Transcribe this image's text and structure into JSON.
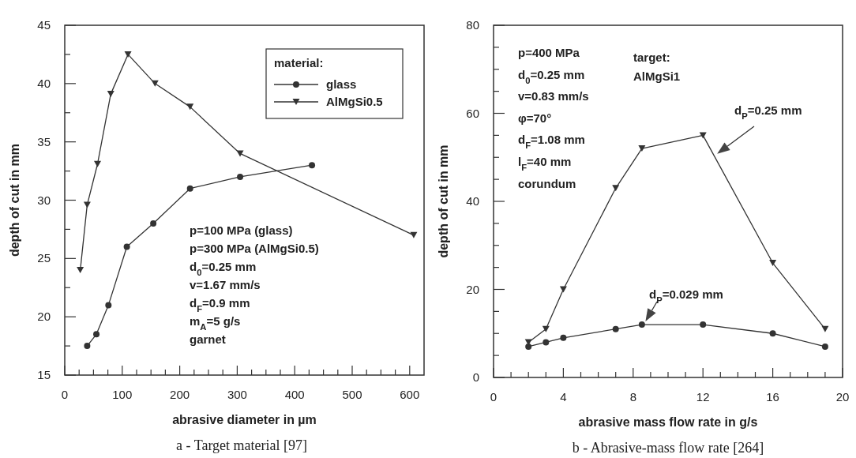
{
  "chart_data": [
    {
      "type": "line",
      "title": "a - Target material [97]",
      "xlabel": "abrasive diameter in µm",
      "ylabel": "depth of cut in mm",
      "legend_title": "material:",
      "legend": "top right",
      "xlim": [
        0,
        625
      ],
      "ylim": [
        15,
        45
      ],
      "xticks": [
        0,
        {
          "value": 25,
          "label": null
        },
        {
          "value": 50,
          "label": null
        },
        {
          "value": 75,
          "label": null
        },
        100,
        {
          "value": 125,
          "label": null
        },
        {
          "value": 150,
          "label": null
        },
        {
          "value": 175,
          "label": null
        },
        200,
        {
          "value": 225,
          "label": null
        },
        {
          "value": 250,
          "label": null
        },
        {
          "value": 275,
          "label": null
        },
        300,
        {
          "value": 325,
          "label": null
        },
        {
          "value": 350,
          "label": null
        },
        {
          "value": 375,
          "label": null
        },
        400,
        {
          "value": 425,
          "label": null
        },
        {
          "value": 450,
          "label": null
        },
        {
          "value": 475,
          "label": null
        },
        500,
        {
          "value": 525,
          "label": null
        },
        {
          "value": 550,
          "label": null
        },
        {
          "value": 575,
          "label": null
        },
        600
      ],
      "yticks": [
        15,
        {
          "value": 17.5,
          "label": null
        },
        20,
        {
          "value": 22.5,
          "label": null
        },
        25,
        {
          "value": 27.5,
          "label": null
        },
        30,
        {
          "value": 32.5,
          "label": null
        },
        35,
        {
          "value": 37.5,
          "label": null
        },
        40,
        {
          "value": 42.5,
          "label": null
        },
        45
      ],
      "series": [
        {
          "name": "glass",
          "color": "#333333",
          "marker": "circle",
          "x": [
            39,
            55,
            76,
            108,
            154,
            218,
            305,
            430
          ],
          "values": [
            17.5,
            18.5,
            21,
            26,
            28,
            31,
            32,
            33
          ]
        },
        {
          "name": "AlMgSi0.5",
          "color": "#333333",
          "marker": "triangle",
          "x": [
            27,
            39,
            57,
            80,
            110,
            157,
            218,
            305,
            607
          ],
          "values": [
            24,
            29.6,
            33.1,
            39.1,
            42.5,
            40,
            38,
            34,
            27
          ]
        }
      ],
      "annotations": [
        "p=100 MPa (glass)",
        "p=300 MPa (AlMgSi0.5)",
        "d$_{0}$=0.25 mm",
        "v=1.67 mm/s",
        "d$_{F}$=0.9 mm",
        "m$_{A}$=5 g/s",
        "garnet"
      ]
    },
    {
      "type": "line",
      "title": "b - Abrasive-mass flow rate [264]",
      "xlabel": "abrasive mass flow rate in g/s",
      "ylabel": "depth of cut in mm",
      "xlim": [
        0,
        20
      ],
      "ylim": [
        0,
        80
      ],
      "xticks": [
        0,
        {
          "value": 1,
          "label": null
        },
        {
          "value": 2,
          "label": null
        },
        {
          "value": 3,
          "label": null
        },
        4,
        {
          "value": 5,
          "label": null
        },
        {
          "value": 6,
          "label": null
        },
        {
          "value": 7,
          "label": null
        },
        8,
        {
          "value": 9,
          "label": null
        },
        {
          "value": 10,
          "label": null
        },
        {
          "value": 11,
          "label": null
        },
        12,
        {
          "value": 13,
          "label": null
        },
        {
          "value": 14,
          "label": null
        },
        {
          "value": 15,
          "label": null
        },
        16,
        {
          "value": 17,
          "label": null
        },
        {
          "value": 18,
          "label": null
        },
        {
          "value": 19,
          "label": null
        },
        20
      ],
      "yticks": [
        0,
        {
          "value": 5,
          "label": null
        },
        {
          "value": 10,
          "label": null
        },
        {
          "value": 15,
          "label": null
        },
        20,
        {
          "value": 25,
          "label": null
        },
        {
          "value": 30,
          "label": null
        },
        {
          "value": 35,
          "label": null
        },
        40,
        {
          "value": 45,
          "label": null
        },
        {
          "value": 50,
          "label": null
        },
        {
          "value": 55,
          "label": null
        },
        60,
        {
          "value": 65,
          "label": null
        },
        {
          "value": 70,
          "label": null
        },
        {
          "value": 75,
          "label": null
        },
        80
      ],
      "series": [
        {
          "name": "d$_{P}$=0.25 mm",
          "color": "#333333",
          "marker": "triangle",
          "x": [
            2,
            3,
            4,
            7,
            8.5,
            12,
            16,
            19
          ],
          "values": [
            8,
            11,
            20,
            43,
            52,
            55,
            26,
            11
          ]
        },
        {
          "name": "d$_{P}$=0.029 mm",
          "color": "#333333",
          "marker": "circle",
          "x": [
            2,
            3,
            4,
            7,
            8.5,
            12,
            16,
            19
          ],
          "values": [
            7,
            8,
            9,
            11,
            12,
            12,
            10,
            7
          ]
        }
      ],
      "annotations": [
        "p=400 MPa",
        "d$_{0}$=0.25 mm",
        "v=0.83 mm/s",
        "φ=70°",
        "d$_{F}$=1.08 mm",
        "l$_{F}$=40 mm",
        "corundum",
        "target:",
        "AlMgSi1"
      ]
    }
  ]
}
